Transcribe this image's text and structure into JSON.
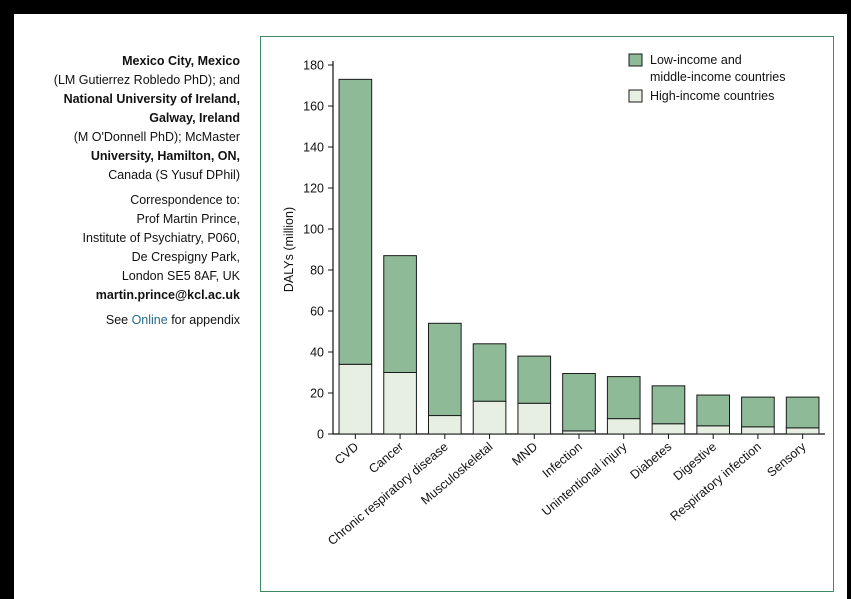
{
  "sidebar": {
    "affil_line1": "Mexico City, Mexico",
    "affil_line2": "(LM Gutierrez Robledo PhD); and",
    "affil_line3": "National University of Ireland,",
    "affil_line4": "Galway, Ireland",
    "affil_line5": "(M O'Donnell PhD); McMaster",
    "affil_line6": "University, Hamilton, ON,",
    "affil_line7": "Canada (S Yusuf DPhil)",
    "corr_line1": "Correspondence to:",
    "corr_line2": "Prof Martin Prince,",
    "corr_line3": "Institute of Psychiatry, P060,",
    "corr_line4": "De Crespigny Park,",
    "corr_line5": "London SE5 8AF, UK",
    "corr_email": "martin.prince@kcl.ac.uk",
    "see_prefix": "See ",
    "see_link": "Online",
    "see_suffix": " for appendix"
  },
  "colors": {
    "frame": "#000000",
    "chart_border": "#3f8a63",
    "lmic_fill": "#8fba98",
    "hic_fill": "#e6efe2",
    "bar_stroke": "#1a1a1a"
  },
  "chart_data": {
    "type": "bar",
    "stacked": true,
    "ylabel": "DALYs (million)",
    "xlabel": "",
    "title": "",
    "ylim": [
      0,
      180
    ],
    "yticks": [
      0,
      20,
      40,
      60,
      80,
      100,
      120,
      140,
      160,
      180
    ],
    "categories": [
      "CVD",
      "Cancer",
      "Chronic respiratory disease",
      "Musculoskeletal",
      "MND",
      "Infection",
      "Unintentional injury",
      "Diabetes",
      "Digestive",
      "Respiratory infection",
      "Sensory"
    ],
    "series": [
      {
        "name": "High-income countries",
        "values": [
          34,
          30,
          9,
          16,
          15,
          1.5,
          7.5,
          5,
          4,
          3.5,
          3
        ]
      },
      {
        "name": "Low-income and middle-income countries",
        "values": [
          139,
          57,
          45,
          28,
          23,
          28,
          20.5,
          18.5,
          15,
          14.5,
          15
        ]
      }
    ],
    "legend": {
      "placement": "top-right",
      "entries": [
        {
          "line1": "Low-income and",
          "line2": "middle-income countries"
        },
        {
          "line1": "High-income countries",
          "line2": ""
        }
      ]
    }
  }
}
